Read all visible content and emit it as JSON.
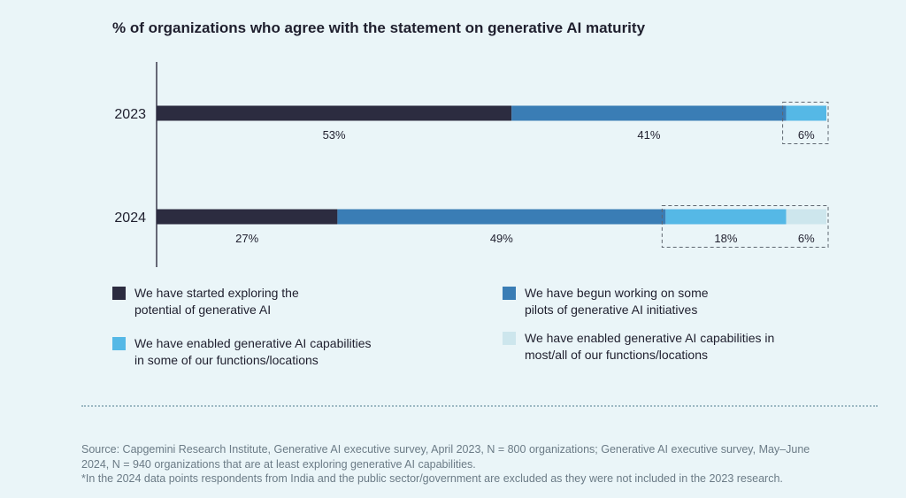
{
  "chart_data": {
    "type": "bar",
    "orientation": "horizontal",
    "stacked": true,
    "title": "% of organizations who agree with the statement on generative AI maturity",
    "categories": [
      "2023",
      "2024"
    ],
    "series": [
      {
        "name": "We have started exploring the potential of generative AI",
        "values": [
          53,
          27
        ],
        "labels": [
          "53%",
          "27%"
        ],
        "color": "#2c2c40"
      },
      {
        "name": "We have begun working on some pilots of generative AI initiatives",
        "values": [
          41,
          49
        ],
        "labels": [
          "41%",
          "49%"
        ],
        "color": "#3a7db5"
      },
      {
        "name": "We have enabled generative AI capabilities in some of our functions/locations",
        "values": [
          6,
          18
        ],
        "labels": [
          "6%",
          "18%"
        ],
        "color": "#55b8e6"
      },
      {
        "name": "We have enabled generative AI capabilities in most/all of our functions/locations",
        "values": [
          0,
          6
        ],
        "labels": [
          "",
          "6%"
        ],
        "color": "#cde6ed"
      }
    ],
    "xlim": [
      0,
      100
    ],
    "grid": false,
    "legend_position": "bottom"
  },
  "legend": [
    {
      "line1": "We have started exploring the",
      "line2": "potential of generative AI"
    },
    {
      "line1": "We have begun working on some",
      "line2": "pilots of generative AI initiatives"
    },
    {
      "line1": "We have enabled generative AI capabilities",
      "line2": "in some of our functions/locations"
    },
    {
      "line1": "We have enabled generative AI capabilities in",
      "line2": "most/all of our functions/locations"
    }
  ],
  "source": {
    "line1": "Source: Capgemini Research Institute, Generative AI executive survey, April 2023, N = 800 organizations; Generative AI executive survey, May–June",
    "line2": "2024, N = 940 organizations that are at least exploring generative AI capabilities.",
    "line3": "*In the 2024 data points respondents from India and the public sector/government are excluded as they were not included in the 2023 research."
  }
}
